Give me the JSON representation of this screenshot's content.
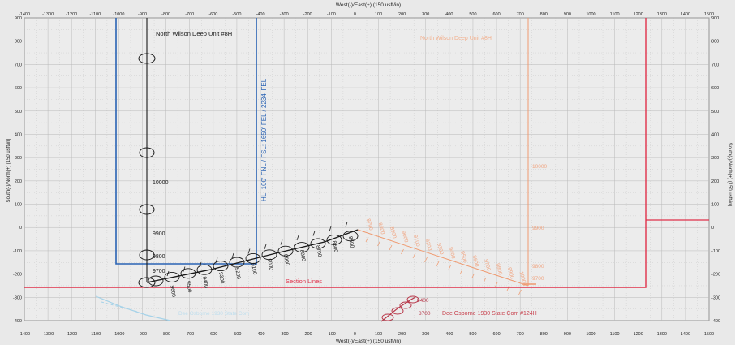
{
  "axes": {
    "top_title": "West(-)/East(+) (150 usft/in)",
    "bottom_title": "West(-)/East(+) (150 usft/in)",
    "left_title": "South(-)/North(+) (150 usft/in)",
    "right_title": "South(-)/North(+) (150 usft/in)",
    "x_ticks": [
      -1400,
      -1300,
      -1200,
      -1100,
      -1000,
      -900,
      -800,
      -700,
      -600,
      -500,
      -400,
      -300,
      -200,
      -100,
      0,
      100,
      200,
      300,
      400,
      500,
      600,
      700,
      800,
      900,
      1000,
      1100,
      1200,
      1300,
      1400,
      1500
    ],
    "y_ticks": [
      -400,
      -300,
      -200,
      -100,
      0,
      100,
      200,
      300,
      400,
      500,
      600,
      700,
      800,
      900
    ],
    "x_range": [
      -1400,
      1500
    ],
    "y_range": [
      -400,
      900
    ],
    "grid": true
  },
  "labels": {
    "well_8h": "North Wilson Deep Unit #8H",
    "well_8h_ghost": "North Wilson Deep Unit #8H",
    "hl_text": "HL: 100' FNL / FSL: 1650' FEL / 2234' FEL",
    "section_lines": "Section Lines",
    "dee_osborne": "Dee Osborne 1930 State Com #124H",
    "lower_left_ghost": "Dee Osborne 1930 State Com"
  },
  "md_labels": {
    "black_vertical": [
      "10000",
      "9900",
      "9800",
      "9700"
    ],
    "black_lateral": [
      "9600",
      "9500",
      "9400",
      "9300",
      "9200",
      "9100",
      "9000",
      "8900",
      "8800",
      "8700",
      "8600",
      "8500"
    ],
    "orange_lateral": [
      "8700",
      "8800",
      "8900",
      "9000",
      "9100",
      "9200",
      "9300",
      "9400",
      "9500",
      "9600",
      "9700",
      "9800",
      "9900",
      "10000"
    ],
    "orange_vertical": [
      "10000",
      "9900",
      "9800",
      "9700"
    ],
    "red_cluster": [
      "8400",
      "8700"
    ]
  },
  "colors": {
    "background": "#e9e9e9",
    "grid": "#b9b9b9",
    "lease_blue": "#2a63b4",
    "section_red": "#e0304a",
    "orange_well": "#ef9a70",
    "red_well": "#b8384a",
    "black_well": "#1a1a1a",
    "ghost_blue": "#9fd0e8"
  }
}
